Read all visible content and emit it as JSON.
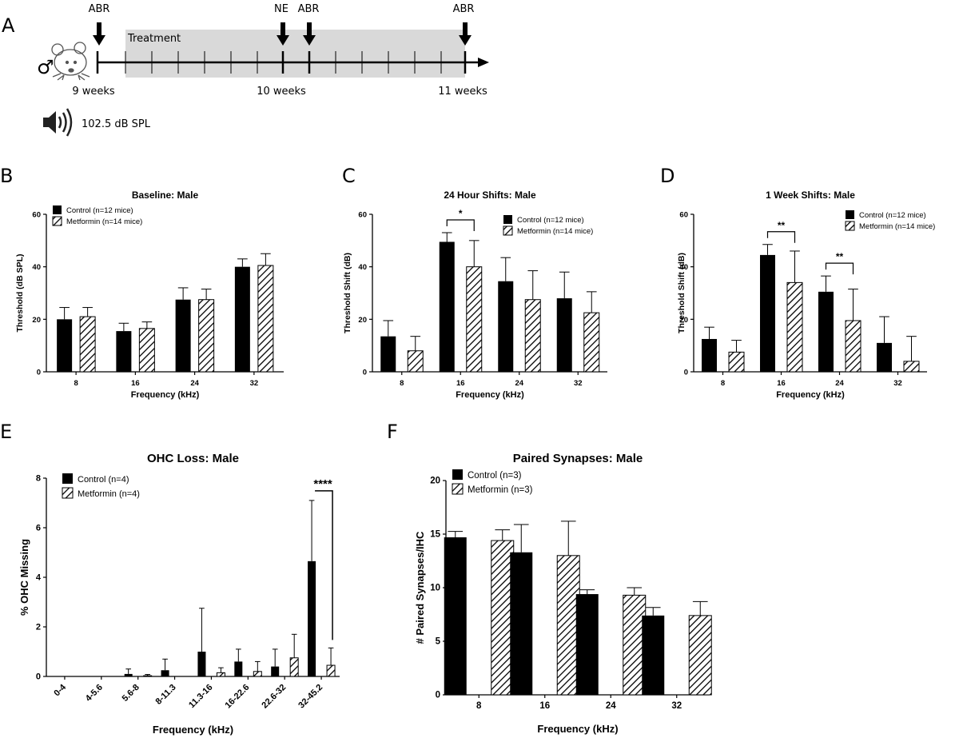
{
  "panel_labels": {
    "A": "A",
    "B": "B",
    "C": "C",
    "D": "D",
    "E": "E",
    "F": "F"
  },
  "timeline": {
    "male_symbol": "♂",
    "treatment_label": "Treatment",
    "arrows": [
      "ABR",
      "NE",
      "ABR",
      "ABR"
    ],
    "week_labels": [
      "9 weeks",
      "10 weeks",
      "11 weeks"
    ],
    "sound_label": "102.5 dB SPL",
    "icons": {
      "mouse": "mouse-icon",
      "speaker": "speaker-icon"
    }
  },
  "chart_data": [
    {
      "id": "B",
      "type": "bar",
      "title": "Baseline: Male",
      "xlabel": "Frequency (kHz)",
      "ylabel": "Threshold (dB SPL)",
      "ylim": [
        0,
        60
      ],
      "yticks": [
        0,
        20,
        40,
        60
      ],
      "categories": [
        "8",
        "16",
        "24",
        "32"
      ],
      "series": [
        {
          "name": "Control (n=12 mice)",
          "values": [
            20,
            15.5,
            27.5,
            40
          ],
          "errors": [
            4.5,
            3,
            4.5,
            3
          ]
        },
        {
          "name": "Metformin (n=14 mice)",
          "values": [
            21,
            16.5,
            27.5,
            40.5
          ],
          "errors": [
            3.5,
            2.5,
            4,
            4.5
          ]
        }
      ],
      "legend": "top-left",
      "significance": []
    },
    {
      "id": "C",
      "type": "bar",
      "title": "24 Hour Shifts: Male",
      "xlabel": "Frequency (kHz)",
      "ylabel": "Threshold Shift (dB)",
      "ylim": [
        0,
        60
      ],
      "yticks": [
        0,
        20,
        40,
        60
      ],
      "categories": [
        "8",
        "16",
        "24",
        "32"
      ],
      "series": [
        {
          "name": "Control (n=12 mice)",
          "values": [
            13.5,
            49.5,
            34.5,
            28
          ],
          "errors": [
            6,
            3.5,
            9,
            10
          ]
        },
        {
          "name": "Metformin (n=14 mice)",
          "values": [
            8,
            40,
            27.5,
            22.5
          ],
          "errors": [
            5.5,
            10,
            11,
            8
          ]
        }
      ],
      "legend": "top-right",
      "significance": [
        {
          "category": "16",
          "label": "*"
        }
      ]
    },
    {
      "id": "D",
      "type": "bar",
      "title": "1 Week Shifts: Male",
      "xlabel": "Frequency (kHz)",
      "ylabel": "Threshold Shift (dB)",
      "ylim": [
        0,
        60
      ],
      "yticks": [
        0,
        20,
        40,
        60
      ],
      "categories": [
        "8",
        "16",
        "24",
        "32"
      ],
      "series": [
        {
          "name": "Control (n=12 mice)",
          "values": [
            12.5,
            44.5,
            30.5,
            11
          ],
          "errors": [
            4.5,
            4,
            6,
            10
          ]
        },
        {
          "name": "Metformin (n=14 mice)",
          "values": [
            7.5,
            34,
            19.5,
            4
          ],
          "errors": [
            4.5,
            12,
            12,
            9.5
          ]
        }
      ],
      "legend": "top-right",
      "significance": [
        {
          "category": "16",
          "label": "**"
        },
        {
          "category": "24",
          "label": "**"
        }
      ]
    },
    {
      "id": "E",
      "type": "bar",
      "title": "OHC Loss: Male",
      "xlabel": "Frequency (kHz)",
      "ylabel": "% OHC Missing",
      "ylim": [
        0,
        8
      ],
      "yticks": [
        0,
        2,
        4,
        6,
        8
      ],
      "categories": [
        "0-4",
        "4-5.6",
        "5.6-8",
        "8-11.3",
        "11.3-16",
        "16-22.6",
        "22.6-32",
        "32-45.2"
      ],
      "series": [
        {
          "name": "Control (n=4)",
          "values": [
            0,
            0,
            0.1,
            0.25,
            1.0,
            0.6,
            0.4,
            4.65
          ],
          "errors": [
            0,
            0,
            0.2,
            0.45,
            1.75,
            0.5,
            0.7,
            2.45
          ]
        },
        {
          "name": "Metformin (n=4)",
          "values": [
            0,
            0,
            0.03,
            0,
            0.15,
            0.2,
            0.75,
            0.45
          ],
          "errors": [
            0,
            0,
            0.05,
            0,
            0.2,
            0.4,
            0.95,
            0.7
          ]
        }
      ],
      "legend": "top-left",
      "significance": [
        {
          "category": "32-45.2",
          "label": "****"
        }
      ]
    },
    {
      "id": "F",
      "type": "bar",
      "title": "Paired Synapses: Male",
      "xlabel": "Frequency (kHz)",
      "ylabel": "# Paired Synapses/IHC",
      "ylim": [
        0,
        20
      ],
      "yticks": [
        0,
        5,
        10,
        15,
        20
      ],
      "categories": [
        "8",
        "16",
        "24",
        "32"
      ],
      "series": [
        {
          "name": "Control (n=3)",
          "values": [
            14.7,
            13.3,
            9.4,
            7.4
          ],
          "errors": [
            0.55,
            2.6,
            0.4,
            0.75
          ]
        },
        {
          "name": "Metformin (n=3)",
          "values": [
            14.4,
            13.0,
            9.3,
            7.4
          ],
          "errors": [
            1.0,
            3.2,
            0.7,
            1.3
          ]
        }
      ],
      "legend": "top-left",
      "significance": []
    }
  ]
}
